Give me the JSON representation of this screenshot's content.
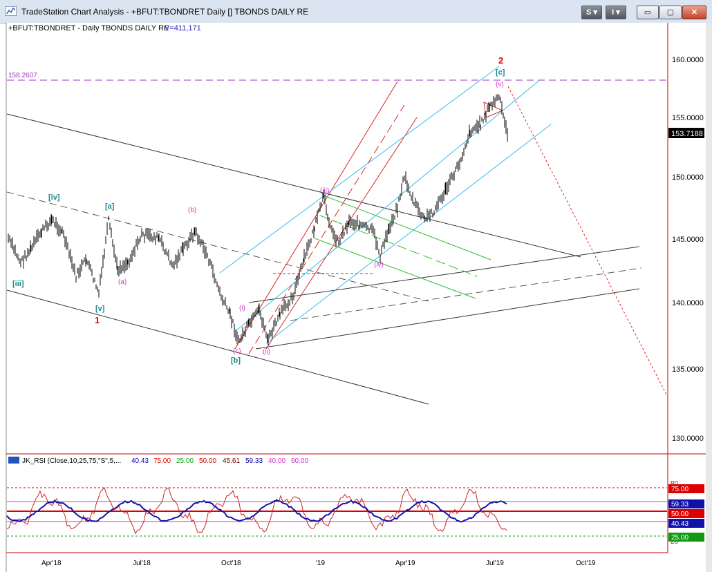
{
  "window": {
    "title": "TradeStation Chart Analysis - +BFUT:TBONDRET Daily [] TBONDS DAILY RE",
    "buttons": {
      "s": "S",
      "info": "I",
      "minimize": "▭",
      "maximize": "▢",
      "close": "✕"
    }
  },
  "chart": {
    "header": "+BFUT:TBONDRET - Daily  TBONDS DAILY RE",
    "volume": "V=411,171",
    "ref_level_label": "158.2607",
    "last_price": "153.7188",
    "price_axis": [
      "160.0000",
      "155.0000",
      "150.0000",
      "145.0000",
      "140.0000",
      "135.0000",
      "130.0000"
    ],
    "date_axis": [
      "Apr'18",
      "Jul'18",
      "Oct'18",
      "'19",
      "Apr'19",
      "Jul'19",
      "Oct'19"
    ],
    "wave_labels": {
      "iii": "[iii]",
      "iv": "[iv]",
      "v": "[v]",
      "one": "1",
      "a_big": "[a]",
      "a_small": "(a)",
      "b_small": "(b)",
      "c_small": "(c)",
      "b_big": "[b]",
      "i": "(i)",
      "ii": "(ii)",
      "iii_small": "(iii)",
      "iv_small": "(iv)",
      "v_small": "(v)",
      "c_big": "[c]",
      "two": "2"
    },
    "colors": {
      "up_label": "#1a8a8a",
      "magenta": "#cc33cc",
      "red": "#dd0000",
      "axis": "#cc0000",
      "cyan": "#33bbee",
      "green": "#22bb22"
    }
  },
  "indicator": {
    "name": "JK_RSI (Close,10,25,75,\"S\",5,...",
    "values": [
      "40.43",
      "75.00",
      "25.00",
      "50.00",
      "45.61",
      "59.33",
      "40.00",
      "60.00"
    ],
    "axis_top": "80",
    "axis_bottom": "20",
    "tags": [
      "75.00",
      "59.33",
      "50.00",
      "40.43",
      "25.00"
    ]
  }
}
